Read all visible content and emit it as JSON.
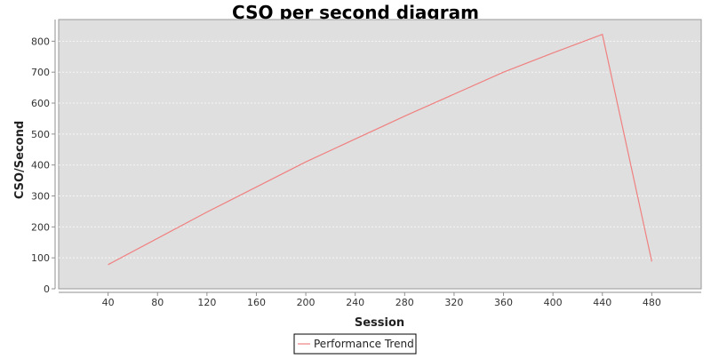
{
  "chart_data": {
    "type": "line",
    "title": "CSO per second diagram",
    "xlabel": "Session",
    "ylabel": "CSO/Second",
    "x_ticks": [
      40,
      80,
      120,
      160,
      200,
      240,
      280,
      320,
      360,
      400,
      440,
      480
    ],
    "y_ticks": [
      0,
      100,
      200,
      300,
      400,
      500,
      600,
      700,
      800
    ],
    "xlim": [
      0,
      520
    ],
    "ylim": [
      0,
      870
    ],
    "grid": true,
    "legend_position": "bottom",
    "series": [
      {
        "name": "Performance Trend",
        "color": "#f08080",
        "x": [
          40,
          120,
          200,
          280,
          360,
          400,
          440,
          480
        ],
        "y": [
          78,
          248,
          410,
          558,
          700,
          762,
          822,
          88
        ]
      }
    ]
  }
}
